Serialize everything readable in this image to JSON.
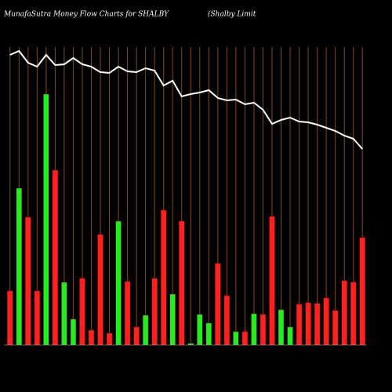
{
  "chart_data": {
    "type": "bar",
    "title": "MunafaSutra  Money Flow  Charts for SHALBY",
    "subtitle": "(Shalby Limit",
    "categories": [
      null,
      null,
      null,
      null,
      null,
      null,
      null,
      null,
      null,
      null,
      null,
      null,
      null,
      null,
      null,
      null,
      null,
      null,
      null,
      null,
      null,
      null,
      null,
      null,
      null,
      null,
      null,
      null,
      null,
      null,
      null,
      null,
      null,
      null,
      null,
      null,
      null,
      null,
      null,
      null
    ],
    "values": [
      69,
      200,
      163,
      69,
      320,
      223,
      80,
      33,
      85,
      19,
      141,
      15,
      158,
      81,
      23,
      38,
      85,
      172,
      65,
      158,
      2,
      39,
      28,
      104,
      63,
      17,
      17,
      40,
      39,
      164,
      45,
      23,
      52,
      54,
      53,
      60,
      44,
      82,
      80,
      137
    ],
    "colors": [
      "#ff2020",
      "#20ee20",
      "#ff2020",
      "#ff2020",
      "#20ee20",
      "#ff2020",
      "#20ee20",
      "#20ee20",
      "#ff2020",
      "#ff2020",
      "#ff2020",
      "#ff2020",
      "#20ee20",
      "#ff2020",
      "#ff2020",
      "#20ee20",
      "#ff2020",
      "#ff2020",
      "#20ee20",
      "#ff2020",
      "#20ee20",
      "#20ee20",
      "#20ee20",
      "#ff2020",
      "#ff2020",
      "#20ee20",
      "#ff2020",
      "#20ee20",
      "#ff2020",
      "#ff2020",
      "#20ee20",
      "#20ee20",
      "#ff2020",
      "#ff2020",
      "#ff2020",
      "#ff2020",
      "#ff2020",
      "#ff2020",
      "#ff2020",
      "#ff2020"
    ],
    "line": {
      "values": [
        370,
        375,
        360,
        355,
        370,
        357,
        358,
        366,
        358,
        355,
        348,
        347,
        355,
        349,
        348,
        353,
        350,
        331,
        337,
        317,
        320,
        322,
        325,
        315,
        312,
        313,
        307,
        309,
        300,
        282,
        287,
        290,
        285,
        284,
        281,
        277,
        273,
        267,
        263,
        250
      ],
      "color": "#ffffff",
      "axis": "y2"
    },
    "ylim": [
      0,
      380
    ],
    "y2lim": [
      0,
      380
    ],
    "grid": true,
    "grid_color": "#8b4a10"
  }
}
